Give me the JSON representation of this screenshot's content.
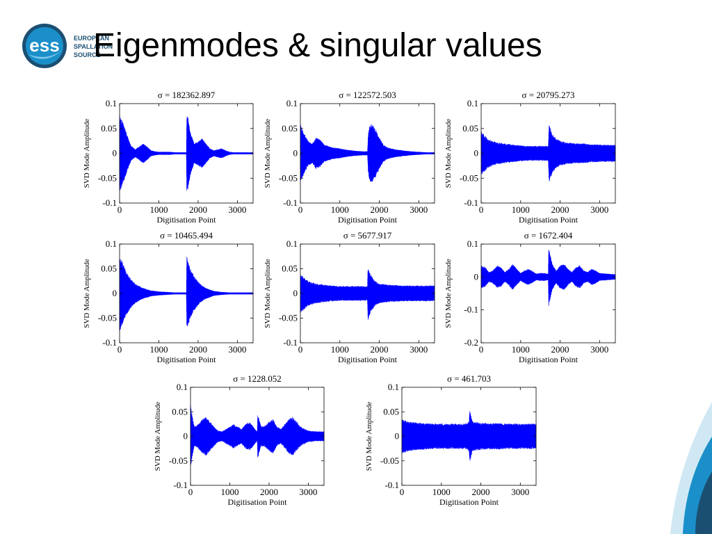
{
  "slide": {
    "title": "Eigenmodes & singular values",
    "logo": {
      "mark": "ess",
      "lines": [
        "EUROPEAN",
        "SPALLATION",
        "SOURCE"
      ]
    }
  },
  "colors": {
    "trace": "#0000ff",
    "logo_blue": "#1a8fc9",
    "logo_dark": "#1b4f72"
  },
  "chart_data": [
    {
      "type": "line",
      "title": "σ = 182362.897",
      "xlabel": "Digitisation Point",
      "ylabel": "SVD Mode Amplitude",
      "xlim": [
        0,
        3400
      ],
      "ylim": [
        -0.1,
        0.1
      ],
      "xticks": [
        "0",
        "1000",
        "2000",
        "3000"
      ],
      "yticks": [
        "0.1",
        "0.05",
        "0",
        "-0.05",
        "-0.1"
      ],
      "series": [
        {
          "x": [
            0,
            100,
            200,
            300,
            400,
            500,
            600,
            700,
            800,
            900,
            1000,
            1100,
            1200,
            1300,
            1400,
            1500,
            1600,
            1700,
            1710,
            1750,
            1800,
            1900,
            2000,
            2100,
            2200,
            2300,
            2400,
            2500,
            2600,
            2700,
            2800,
            2900,
            3000,
            3100,
            3200,
            3300,
            3400
          ],
          "envelope": [
            0.078,
            0.06,
            0.035,
            0.015,
            0.008,
            0.014,
            0.02,
            0.014,
            0.006,
            0.004,
            0.003,
            0.003,
            0.003,
            0.003,
            0.002,
            0.002,
            0.002,
            0.002,
            0.08,
            0.07,
            0.045,
            0.02,
            0.025,
            0.03,
            0.02,
            0.01,
            0.006,
            0.008,
            0.01,
            0.006,
            0.003,
            0.002,
            0.002,
            0.002,
            0.002,
            0.002,
            0.002
          ]
        }
      ]
    },
    {
      "type": "line",
      "title": "σ = 122572.503",
      "xlabel": "Digitisation Point",
      "ylabel": "SVD Mode Amplitude",
      "xlim": [
        0,
        3400
      ],
      "ylim": [
        -0.1,
        0.1
      ],
      "xticks": [
        "0",
        "1000",
        "2000",
        "3000"
      ],
      "yticks": [
        "0.1",
        "0.05",
        "0",
        "-0.05",
        "-0.1"
      ],
      "series": [
        {
          "x": [
            0,
            100,
            200,
            300,
            400,
            500,
            600,
            800,
            1000,
            1200,
            1400,
            1600,
            1700,
            1720,
            1750,
            1800,
            1900,
            2000,
            2100,
            2200,
            2300,
            2400,
            2600,
            2800,
            3000,
            3200,
            3400
          ],
          "envelope": [
            0.06,
            0.04,
            0.025,
            0.02,
            0.032,
            0.028,
            0.018,
            0.012,
            0.01,
            0.007,
            0.005,
            0.004,
            0.004,
            0.04,
            0.055,
            0.06,
            0.05,
            0.032,
            0.018,
            0.012,
            0.01,
            0.008,
            0.006,
            0.004,
            0.003,
            0.002,
            0.002
          ]
        }
      ]
    },
    {
      "type": "line",
      "title": "σ = 20795.273",
      "xlabel": "Digitisation Point",
      "ylabel": "SVD Mode Amplitude",
      "xlim": [
        0,
        3400
      ],
      "ylim": [
        -0.1,
        0.1
      ],
      "xticks": [
        "0",
        "1000",
        "2000",
        "3000"
      ],
      "yticks": [
        "0.1",
        "0.05",
        "0",
        "-0.05",
        "-0.1"
      ],
      "series": [
        {
          "x": [
            0,
            100,
            200,
            400,
            600,
            800,
            1000,
            1200,
            1400,
            1600,
            1700,
            1720,
            1760,
            1800,
            1900,
            2000,
            2200,
            2400,
            2600,
            2800,
            3000,
            3200,
            3400
          ],
          "envelope": [
            0.045,
            0.035,
            0.028,
            0.022,
            0.02,
            0.018,
            0.016,
            0.015,
            0.015,
            0.015,
            0.015,
            0.06,
            0.05,
            0.04,
            0.03,
            0.025,
            0.022,
            0.02,
            0.02,
            0.018,
            0.018,
            0.017,
            0.017
          ]
        }
      ]
    },
    {
      "type": "line",
      "title": "σ = 10465.494",
      "xlabel": "Digitisation Point",
      "ylabel": "SVD Mode Amplitude",
      "xlim": [
        0,
        3400
      ],
      "ylim": [
        -0.1,
        0.1
      ],
      "xticks": [
        "0",
        "1000",
        "2000",
        "3000"
      ],
      "yticks": [
        "0.1",
        "0.05",
        "0",
        "-0.05",
        "-0.1"
      ],
      "series": [
        {
          "x": [
            0,
            100,
            200,
            300,
            400,
            500,
            600,
            800,
            1000,
            1200,
            1400,
            1600,
            1700,
            1710,
            1750,
            1800,
            1900,
            2000,
            2100,
            2200,
            2300,
            2400,
            2600,
            2800,
            3000,
            3200,
            3400
          ],
          "envelope": [
            0.078,
            0.058,
            0.04,
            0.028,
            0.02,
            0.015,
            0.011,
            0.006,
            0.004,
            0.003,
            0.002,
            0.002,
            0.002,
            0.075,
            0.065,
            0.05,
            0.035,
            0.024,
            0.016,
            0.011,
            0.008,
            0.005,
            0.003,
            0.002,
            0.002,
            0.002,
            0.002
          ]
        }
      ]
    },
    {
      "type": "line",
      "title": "σ = 5677.917",
      "xlabel": "Digitisation Point",
      "ylabel": "SVD Mode Amplitude",
      "xlim": [
        0,
        3400
      ],
      "ylim": [
        -0.1,
        0.1
      ],
      "xticks": [
        "0",
        "1000",
        "2000",
        "3000"
      ],
      "yticks": [
        "0.1",
        "0.05",
        "0",
        "-0.05",
        "-0.1"
      ],
      "series": [
        {
          "x": [
            0,
            100,
            200,
            400,
            600,
            800,
            1000,
            1200,
            1400,
            1600,
            1700,
            1710,
            1750,
            1800,
            1900,
            2000,
            2200,
            2400,
            2600,
            2800,
            3000,
            3200,
            3400
          ],
          "envelope": [
            0.04,
            0.032,
            0.025,
            0.02,
            0.018,
            0.016,
            0.015,
            0.015,
            0.015,
            0.015,
            0.015,
            0.055,
            0.045,
            0.035,
            0.025,
            0.02,
            0.018,
            0.017,
            0.016,
            0.016,
            0.016,
            0.016,
            0.016
          ]
        }
      ]
    },
    {
      "type": "line",
      "title": "σ = 1672.404",
      "xlabel": "Digitisation Point",
      "ylabel": "SVD Mode Amplitude",
      "xlim": [
        0,
        3400
      ],
      "ylim": [
        -0.2,
        0.1
      ],
      "xticks": [
        "0",
        "1000",
        "2000",
        "3000"
      ],
      "yticks": [
        "0.1",
        "0",
        "-0.1",
        "-0.2"
      ],
      "series": [
        {
          "x": [
            0,
            100,
            200,
            300,
            400,
            500,
            600,
            700,
            800,
            900,
            1000,
            1100,
            1200,
            1300,
            1400,
            1500,
            1600,
            1700,
            1710,
            1750,
            1800,
            1900,
            2000,
            2100,
            2200,
            2300,
            2400,
            2500,
            2600,
            2700,
            2800,
            2900,
            3000,
            3200,
            3400
          ],
          "envelope": [
            0.035,
            0.03,
            0.015,
            0.02,
            0.035,
            0.03,
            0.015,
            0.025,
            0.04,
            0.025,
            0.012,
            0.02,
            0.025,
            0.018,
            0.01,
            0.012,
            0.012,
            0.01,
            0.09,
            0.07,
            0.04,
            0.02,
            0.035,
            0.04,
            0.025,
            0.015,
            0.03,
            0.035,
            0.02,
            0.015,
            0.025,
            0.02,
            0.012,
            0.01,
            0.008
          ]
        }
      ]
    },
    {
      "type": "line",
      "title": "σ = 1228.052",
      "xlabel": "Digitisation Point",
      "ylabel": "SVD Mode Amplitude",
      "xlim": [
        0,
        3400
      ],
      "ylim": [
        -0.1,
        0.1
      ],
      "xticks": [
        "0",
        "1000",
        "2000",
        "3000"
      ],
      "yticks": [
        "0.1",
        "0.05",
        "0",
        "-0.05",
        "-0.1"
      ],
      "series": [
        {
          "x": [
            0,
            50,
            100,
            200,
            300,
            400,
            500,
            600,
            700,
            800,
            900,
            1000,
            1100,
            1200,
            1300,
            1400,
            1500,
            1600,
            1700,
            1710,
            1750,
            1800,
            1900,
            2000,
            2100,
            2200,
            2300,
            2400,
            2500,
            2600,
            2700,
            2800,
            3000,
            3200,
            3400
          ],
          "envelope": [
            0.065,
            0.04,
            0.02,
            0.025,
            0.035,
            0.04,
            0.03,
            0.02,
            0.012,
            0.01,
            0.015,
            0.02,
            0.025,
            0.02,
            0.015,
            0.025,
            0.03,
            0.02,
            0.01,
            0.045,
            0.035,
            0.02,
            0.022,
            0.03,
            0.035,
            0.02,
            0.015,
            0.025,
            0.035,
            0.04,
            0.03,
            0.02,
            0.012,
            0.01,
            0.01
          ]
        }
      ]
    },
    {
      "type": "line",
      "title": "σ = 461.703",
      "xlabel": "Digitisation Point",
      "ylabel": "SVD Mode Amplitude",
      "xlim": [
        0,
        3400
      ],
      "ylim": [
        -0.1,
        0.1
      ],
      "xticks": [
        "0",
        "1000",
        "2000",
        "3000"
      ],
      "yticks": [
        "0.1",
        "0.05",
        "0",
        "-0.05",
        "-0.1"
      ],
      "series": [
        {
          "x": [
            0,
            200,
            400,
            600,
            800,
            1000,
            1200,
            1400,
            1600,
            1700,
            1720,
            1760,
            1800,
            2000,
            2200,
            2400,
            2600,
            2800,
            3000,
            3200,
            3400
          ],
          "envelope": [
            0.035,
            0.03,
            0.028,
            0.027,
            0.026,
            0.026,
            0.026,
            0.026,
            0.026,
            0.03,
            0.055,
            0.04,
            0.03,
            0.028,
            0.027,
            0.027,
            0.026,
            0.026,
            0.026,
            0.026,
            0.026
          ]
        }
      ]
    }
  ]
}
